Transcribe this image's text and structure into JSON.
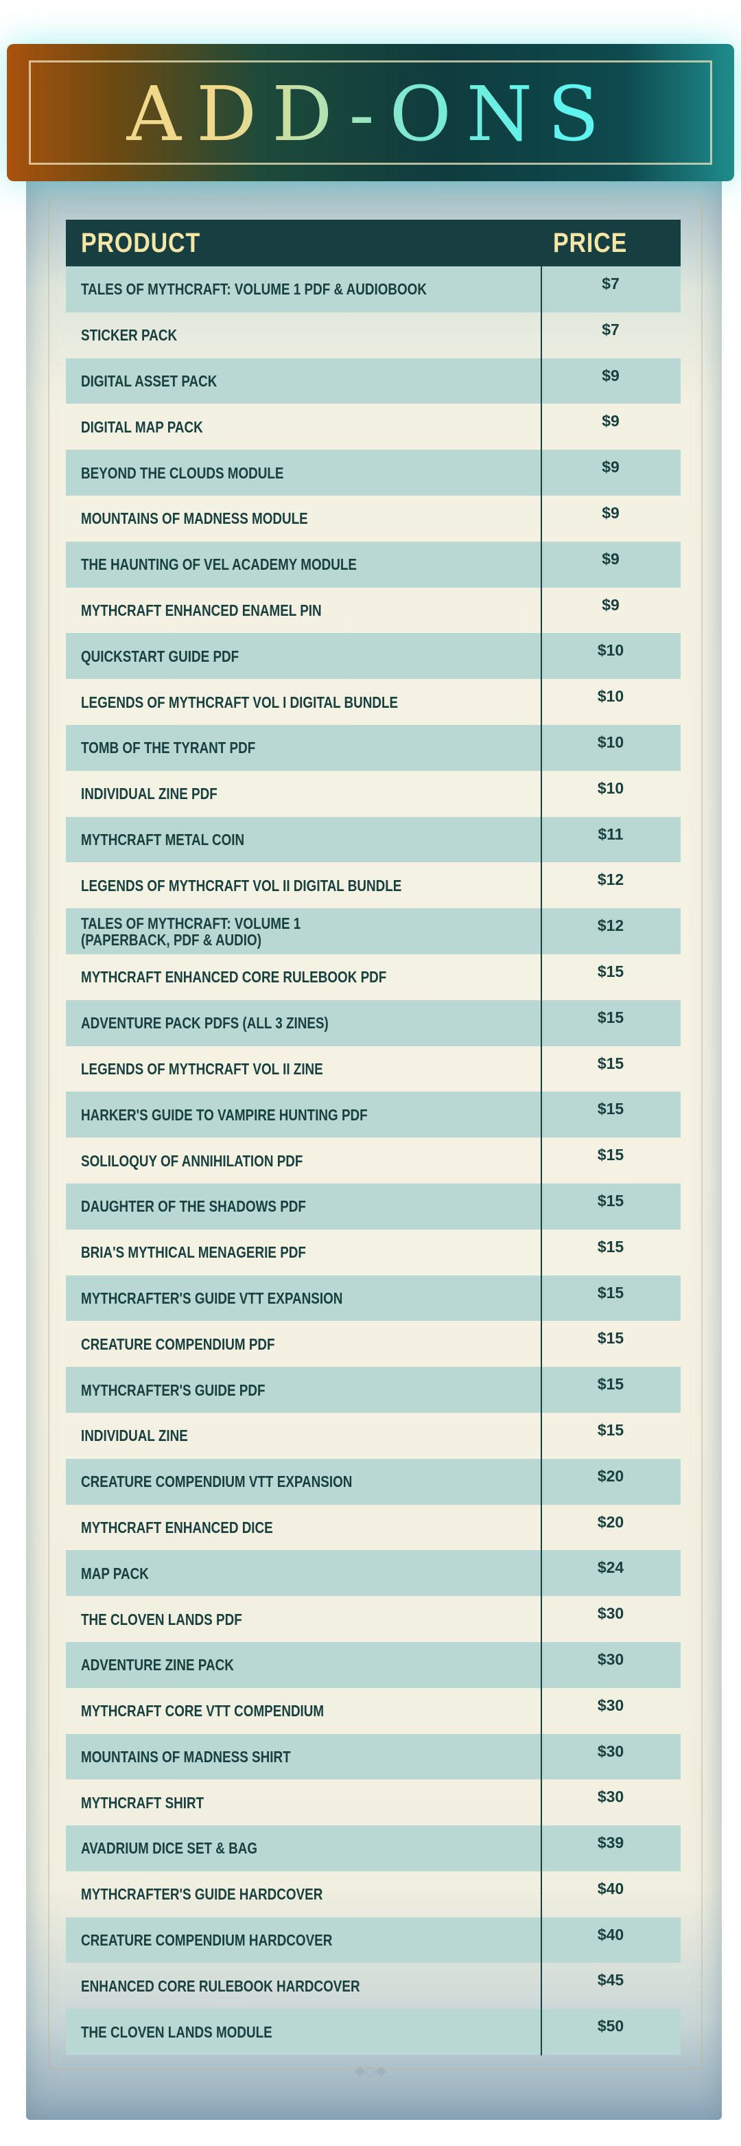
{
  "title": "ADD-ONS",
  "columns": {
    "product": "PRODUCT",
    "price": "PRICE"
  },
  "colors": {
    "header_bg": "#173f42",
    "header_text": "#f6e6a6",
    "row_alt": "#b9d7d3",
    "text": "#17403f"
  },
  "rows": [
    {
      "product": "TALES OF MYTHCRAFT: VOLUME 1 PDF & AUDIOBOOK",
      "price": "$7"
    },
    {
      "product": "STICKER PACK",
      "price": "$7"
    },
    {
      "product": "DIGITAL ASSET PACK",
      "price": "$9"
    },
    {
      "product": "DIGITAL MAP PACK",
      "price": "$9"
    },
    {
      "product": "BEYOND THE CLOUDS MODULE",
      "price": "$9"
    },
    {
      "product": "MOUNTAINS OF MADNESS MODULE",
      "price": "$9"
    },
    {
      "product": "THE HAUNTING OF VEL ACADEMY MODULE",
      "price": "$9"
    },
    {
      "product": "MYTHCRAFT ENHANCED ENAMEL PIN",
      "price": "$9"
    },
    {
      "product": "QUICKSTART GUIDE PDF",
      "price": "$10"
    },
    {
      "product": "LEGENDS OF MYTHCRAFT VOL I DIGITAL BUNDLE",
      "price": "$10"
    },
    {
      "product": "TOMB OF THE TYRANT PDF",
      "price": "$10"
    },
    {
      "product": "INDIVIDUAL ZINE PDF",
      "price": "$10"
    },
    {
      "product": "MYTHCRAFT METAL COIN",
      "price": "$11"
    },
    {
      "product": "LEGENDS OF MYTHCRAFT VOL II DIGITAL BUNDLE",
      "price": "$12"
    },
    {
      "product": "TALES OF MYTHCRAFT: VOLUME 1\n(PAPERBACK, PDF & AUDIO)",
      "price": "$12"
    },
    {
      "product": "MYTHCRAFT ENHANCED CORE RULEBOOK PDF",
      "price": "$15"
    },
    {
      "product": "ADVENTURE PACK PDFS (ALL 3 ZINES)",
      "price": "$15"
    },
    {
      "product": "LEGENDS OF MYTHCRAFT VOL II ZINE",
      "price": "$15"
    },
    {
      "product": "HARKER'S GUIDE TO VAMPIRE HUNTING PDF",
      "price": "$15"
    },
    {
      "product": "SOLILOQUY OF ANNIHILATION PDF",
      "price": "$15"
    },
    {
      "product": "DAUGHTER OF THE SHADOWS PDF",
      "price": "$15"
    },
    {
      "product": "BRIA'S MYTHICAL MENAGERIE PDF",
      "price": "$15"
    },
    {
      "product": "MYTHCRAFTER'S GUIDE VTT EXPANSION",
      "price": "$15"
    },
    {
      "product": "CREATURE COMPENDIUM PDF",
      "price": "$15"
    },
    {
      "product": "MYTHCRAFTER'S GUIDE PDF",
      "price": "$15"
    },
    {
      "product": "INDIVIDUAL ZINE",
      "price": "$15"
    },
    {
      "product": "CREATURE COMPENDIUM VTT EXPANSION",
      "price": "$20"
    },
    {
      "product": "MYTHCRAFT ENHANCED DICE",
      "price": "$20"
    },
    {
      "product": "MAP PACK",
      "price": "$24"
    },
    {
      "product": "THE CLOVEN LANDS PDF",
      "price": "$30"
    },
    {
      "product": "ADVENTURE ZINE PACK",
      "price": "$30"
    },
    {
      "product": "MYTHCRAFT CORE VTT COMPENDIUM",
      "price": "$30"
    },
    {
      "product": "MOUNTAINS OF MADNESS SHIRT",
      "price": "$30"
    },
    {
      "product": "MYTHCRAFT SHIRT",
      "price": "$30"
    },
    {
      "product": "AVADRIUM DICE SET & BAG",
      "price": "$39"
    },
    {
      "product": "MYTHCRAFTER'S GUIDE HARDCOVER",
      "price": "$40"
    },
    {
      "product": "CREATURE COMPENDIUM HARDCOVER",
      "price": "$40"
    },
    {
      "product": "ENHANCED CORE RULEBOOK HARDCOVER",
      "price": "$45"
    },
    {
      "product": "THE CLOVEN LANDS MODULE",
      "price": "$50"
    }
  ]
}
